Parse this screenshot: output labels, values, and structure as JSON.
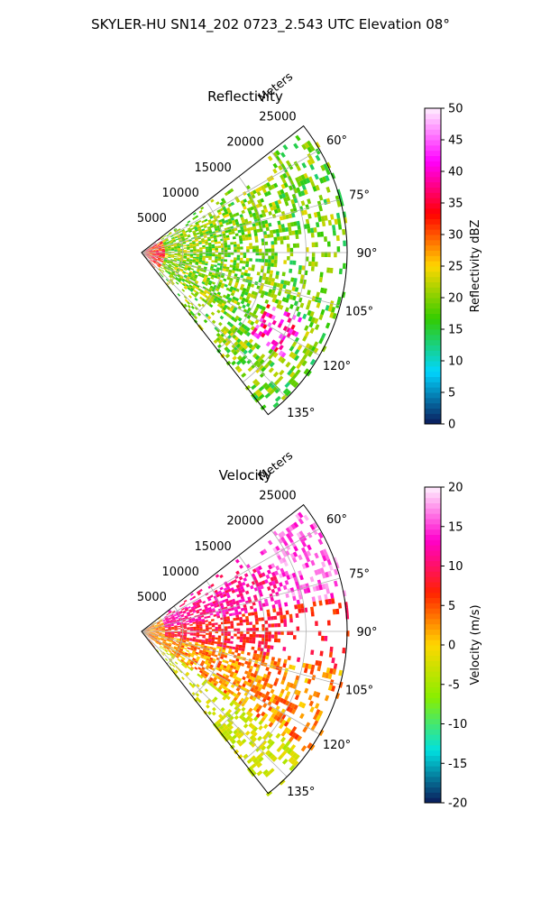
{
  "figure": {
    "suptitle": "SKYLER-HU  SN14_202  0723_2.543 UTC Elevation 08°"
  },
  "chart_data": [
    {
      "type": "heatmap",
      "projection": "polar-sector",
      "title": "Reflectivity",
      "radial_label": "Meters",
      "r_ticks": [
        5000,
        10000,
        15000,
        20000,
        25000
      ],
      "r_max": 25000,
      "theta_ticks": [
        "60°",
        "75°",
        "90°",
        "105°",
        "120°",
        "135°"
      ],
      "theta_range_deg": [
        52,
        142
      ],
      "colorbar": {
        "label": "Reflectivity dBZ",
        "range": [
          0,
          50
        ],
        "ticks": [
          "0",
          "5",
          "10",
          "15",
          "20",
          "25",
          "30",
          "35",
          "40",
          "45",
          "50"
        ]
      },
      "grid": true,
      "colors": {
        "low": "#0b1a5a",
        "mid_low": "#00d5ff",
        "mid": "#33cc00",
        "mid_high": "#ffd700",
        "high": "#ff0000",
        "peak": "#ff00ff",
        "max": "#fff0ff"
      }
    },
    {
      "type": "heatmap",
      "projection": "polar-sector",
      "title": "Velocity",
      "radial_label": "Meters",
      "r_ticks": [
        5000,
        10000,
        15000,
        20000,
        25000
      ],
      "r_max": 25000,
      "theta_ticks": [
        "60°",
        "75°",
        "90°",
        "105°",
        "120°",
        "135°"
      ],
      "theta_range_deg": [
        52,
        142
      ],
      "colorbar": {
        "label": "Velocity (m/s)",
        "range": [
          -20,
          20
        ],
        "ticks": [
          "-20",
          "-15",
          "-10",
          "-5",
          "0",
          "5",
          "10",
          "15",
          "20"
        ]
      },
      "grid": true,
      "colors": {
        "low": "#0b1a5a",
        "mid_low": "#00e0e0",
        "mid": "#88ee00",
        "mid_high": "#ffd700",
        "high": "#ff2200",
        "peak": "#ff00cc",
        "max": "#fff0ff"
      }
    }
  ]
}
